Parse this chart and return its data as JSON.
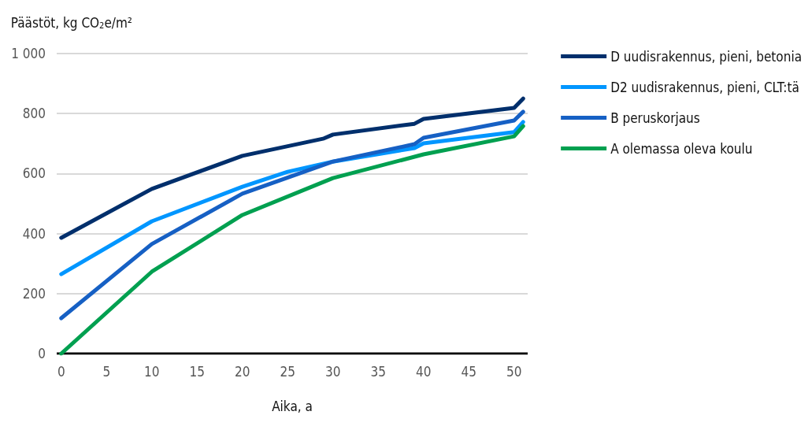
{
  "chart_data": {
    "type": "line",
    "xlabel": "Aika, a",
    "ylabel": "Päästöt, kg CO$_{2}$e/m²",
    "xlim": [
      -0.5,
      51.5
    ],
    "xticks": [
      0,
      5,
      10,
      15,
      20,
      25,
      30,
      35,
      40,
      45,
      50
    ],
    "ylim": [
      0,
      1000
    ],
    "yticks": [
      0,
      200,
      400,
      600,
      800,
      {
        "value": 1000,
        "label": "1 000"
      }
    ],
    "grid": "y",
    "legend": "right",
    "marker": "none",
    "line_style": "solid",
    "series": [
      {
        "name": "D uudisrakennus, pieni, betonia",
        "color": "#002f6c",
        "x": [
          0,
          10,
          20,
          29,
          30,
          39,
          40,
          50,
          51
        ],
        "values": [
          386,
          549,
          659,
          717,
          730,
          766,
          782,
          819,
          850
        ]
      },
      {
        "name": "D2 uudisrakennus, pieni, CLT:tä",
        "color": "#0096ff",
        "x": [
          0,
          10,
          20,
          25,
          30,
          39,
          40,
          50,
          51
        ],
        "values": [
          265,
          441,
          556,
          606,
          640,
          685,
          701,
          738,
          772
        ]
      },
      {
        "name": "B peruskorjaus",
        "color": "#1660c4",
        "x": [
          0,
          10,
          20,
          30,
          39,
          40,
          50,
          51
        ],
        "values": [
          118,
          365,
          533,
          640,
          698,
          719,
          777,
          806
        ]
      },
      {
        "name": "A olemassa oleva koulu",
        "color": "#00a050",
        "x": [
          0,
          10,
          20,
          30,
          40,
          50,
          51
        ],
        "values": [
          0,
          273,
          462,
          585,
          664,
          724,
          758
        ]
      }
    ]
  }
}
